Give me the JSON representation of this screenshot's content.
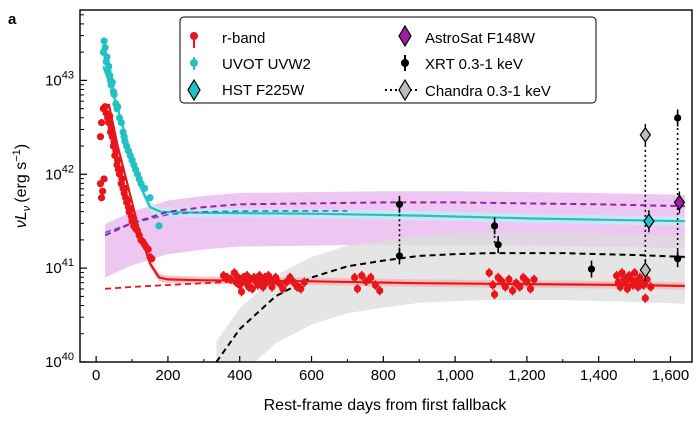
{
  "chart_data": {
    "type": "scatter",
    "panel_label": "a",
    "xlabel": "Rest-frame days from first fallback",
    "ylabel_main": "νL",
    "ylabel_sub": "ν",
    "ylabel_units": "(erg s",
    "ylabel_units_exp": "−1",
    "ylabel_close": ")",
    "xlim": [
      -45,
      1660
    ],
    "ylim_log10": [
      40,
      43.75
    ],
    "x_ticks": [
      {
        "value": 0,
        "label": "0"
      },
      {
        "value": 200,
        "label": "200"
      },
      {
        "value": 400,
        "label": "400"
      },
      {
        "value": 600,
        "label": "600"
      },
      {
        "value": 800,
        "label": "800"
      },
      {
        "value": 1000,
        "label": "1,000"
      },
      {
        "value": 1200,
        "label": "1,200"
      },
      {
        "value": 1400,
        "label": "1,400"
      },
      {
        "value": 1600,
        "label": "1,600"
      }
    ],
    "y_ticks": [
      {
        "log": 40,
        "base": "10",
        "exp": "40"
      },
      {
        "log": 41,
        "base": "10",
        "exp": "41"
      },
      {
        "log": 42,
        "base": "10",
        "exp": "42"
      },
      {
        "log": 43,
        "base": "10",
        "exp": "43"
      }
    ],
    "colors": {
      "r": "#e8151b",
      "uvot": "#22c1c3",
      "hst": "#22c1c3",
      "astrosat": "#9b1fa3",
      "astrosat_band": "#e7b3ee",
      "xrt": "#000000",
      "chandra": "#bdbdbd",
      "xray_band": "#dcdcdc"
    },
    "legend": [
      {
        "label": "r-band",
        "marker": "dot",
        "color": "#e8151b"
      },
      {
        "label": "UVOT UVW2",
        "marker": "dot",
        "color": "#22c1c3"
      },
      {
        "label": "HST F225W",
        "marker": "diamond",
        "color": "#22c1c3"
      },
      {
        "label": "AstroSat F148W",
        "marker": "diamond",
        "color": "#9b1fa3"
      },
      {
        "label": "XRT 0.3-1 keV",
        "marker": "dot",
        "color": "#000000"
      },
      {
        "label": "Chandra 0.3-1 keV",
        "marker": "diamond",
        "color": "#bdbdbd",
        "dotted": true
      }
    ],
    "series": [
      {
        "name": "r-band",
        "type": "points",
        "points": [
          [
            12,
            42.4
          ],
          [
            15,
            42.55
          ],
          [
            20,
            42.7
          ],
          [
            25,
            42.72
          ],
          [
            28,
            42.65
          ],
          [
            32,
            42.6
          ],
          [
            35,
            42.55
          ],
          [
            38,
            42.62
          ],
          [
            40,
            42.45
          ],
          [
            42,
            42.5
          ],
          [
            45,
            42.4
          ],
          [
            48,
            42.3
          ],
          [
            50,
            42.35
          ],
          [
            52,
            42.2
          ],
          [
            55,
            42.25
          ],
          [
            58,
            42.1
          ],
          [
            60,
            42.15
          ],
          [
            62,
            42.05
          ],
          [
            65,
            42.0
          ],
          [
            68,
            42.05
          ],
          [
            70,
            41.9
          ],
          [
            72,
            41.95
          ],
          [
            75,
            41.85
          ],
          [
            78,
            41.8
          ],
          [
            80,
            41.85
          ],
          [
            82,
            41.75
          ],
          [
            85,
            41.7
          ],
          [
            88,
            41.72
          ],
          [
            90,
            41.65
          ],
          [
            92,
            41.6
          ],
          [
            95,
            41.62
          ],
          [
            98,
            41.55
          ],
          [
            100,
            41.5
          ],
          [
            102,
            41.52
          ],
          [
            105,
            41.45
          ],
          [
            110,
            41.42
          ],
          [
            115,
            41.4
          ],
          [
            120,
            41.35
          ],
          [
            125,
            41.3
          ],
          [
            130,
            41.28
          ],
          [
            135,
            41.25
          ],
          [
            140,
            41.22
          ],
          [
            145,
            41.2
          ],
          [
            150,
            41.12
          ],
          [
            155,
            41.1
          ],
          [
            12,
            41.9
          ],
          [
            15,
            41.75
          ],
          [
            18,
            41.82
          ],
          [
            22,
            41.95
          ],
          [
            355,
            40.92
          ],
          [
            365,
            40.9
          ],
          [
            375,
            40.88
          ],
          [
            385,
            40.95
          ],
          [
            390,
            40.85
          ],
          [
            395,
            40.9
          ],
          [
            400,
            40.82
          ],
          [
            405,
            40.75
          ],
          [
            410,
            40.9
          ],
          [
            415,
            40.85
          ],
          [
            420,
            40.92
          ],
          [
            425,
            40.8
          ],
          [
            430,
            40.88
          ],
          [
            435,
            40.78
          ],
          [
            440,
            40.9
          ],
          [
            445,
            40.86
          ],
          [
            450,
            40.82
          ],
          [
            455,
            40.92
          ],
          [
            460,
            40.86
          ],
          [
            465,
            40.8
          ],
          [
            470,
            40.9
          ],
          [
            475,
            40.85
          ],
          [
            480,
            40.92
          ],
          [
            485,
            40.88
          ],
          [
            490,
            40.8
          ],
          [
            495,
            40.86
          ],
          [
            500,
            40.9
          ],
          [
            510,
            40.84
          ],
          [
            520,
            40.78
          ],
          [
            530,
            40.85
          ],
          [
            540,
            40.9
          ],
          [
            550,
            40.85
          ],
          [
            560,
            40.8
          ],
          [
            570,
            40.78
          ],
          [
            580,
            40.85
          ],
          [
            720,
            40.9
          ],
          [
            728,
            40.78
          ],
          [
            740,
            40.92
          ],
          [
            752,
            40.86
          ],
          [
            765,
            40.9
          ],
          [
            778,
            40.82
          ],
          [
            790,
            40.76
          ],
          [
            1095,
            40.95
          ],
          [
            1105,
            40.82
          ],
          [
            1110,
            40.72
          ],
          [
            1120,
            40.9
          ],
          [
            1130,
            40.86
          ],
          [
            1140,
            40.8
          ],
          [
            1150,
            40.88
          ],
          [
            1160,
            40.76
          ],
          [
            1170,
            40.84
          ],
          [
            1180,
            40.8
          ],
          [
            1190,
            40.9
          ],
          [
            1200,
            40.86
          ],
          [
            1210,
            40.78
          ],
          [
            1220,
            40.88
          ],
          [
            1450,
            40.92
          ],
          [
            1455,
            40.85
          ],
          [
            1460,
            40.8
          ],
          [
            1465,
            40.95
          ],
          [
            1470,
            40.9
          ],
          [
            1475,
            40.85
          ],
          [
            1480,
            40.78
          ],
          [
            1485,
            40.92
          ],
          [
            1490,
            40.88
          ],
          [
            1495,
            40.82
          ],
          [
            1500,
            40.95
          ],
          [
            1505,
            40.86
          ],
          [
            1510,
            40.8
          ],
          [
            1515,
            40.9
          ],
          [
            1520,
            40.85
          ],
          [
            1525,
            40.82
          ],
          [
            1530,
            40.68
          ],
          [
            1535,
            40.88
          ],
          [
            1545,
            40.8
          ]
        ]
      },
      {
        "name": "UVOT UVW2",
        "type": "points",
        "points": [
          [
            20,
            43.3
          ],
          [
            22,
            43.42
          ],
          [
            25,
            43.35
          ],
          [
            28,
            43.2
          ],
          [
            30,
            43.25
          ],
          [
            33,
            43.1
          ],
          [
            35,
            43.15
          ],
          [
            38,
            43.05
          ],
          [
            40,
            43.0
          ],
          [
            42,
            42.95
          ],
          [
            45,
            42.98
          ],
          [
            48,
            42.88
          ],
          [
            50,
            42.85
          ],
          [
            55,
            42.75
          ],
          [
            58,
            42.7
          ],
          [
            60,
            42.72
          ],
          [
            65,
            42.6
          ],
          [
            70,
            42.55
          ],
          [
            75,
            42.45
          ],
          [
            78,
            42.4
          ],
          [
            80,
            42.35
          ],
          [
            85,
            42.3
          ],
          [
            90,
            42.25
          ],
          [
            95,
            42.2
          ],
          [
            100,
            42.15
          ],
          [
            105,
            42.1
          ],
          [
            110,
            42.05
          ],
          [
            115,
            42.0
          ],
          [
            120,
            41.95
          ],
          [
            125,
            41.9
          ],
          [
            135,
            41.85
          ],
          [
            150,
            41.75
          ],
          [
            175,
            41.45
          ]
        ]
      },
      {
        "name": "HST F225W",
        "type": "diamond",
        "points": [
          [
            1540,
            41.5
          ]
        ]
      },
      {
        "name": "AstroSat F148W",
        "type": "diamond",
        "points": [
          [
            1625,
            41.7
          ]
        ]
      },
      {
        "name": "XRT 0.3-1 keV",
        "type": "points",
        "points": [
          [
            845,
            41.68
          ],
          [
            845,
            41.13
          ],
          [
            1110,
            41.45
          ],
          [
            1120,
            41.25
          ],
          [
            1380,
            40.99
          ],
          [
            1620,
            42.6
          ],
          [
            1620,
            41.1
          ]
        ]
      },
      {
        "name": "Chandra 0.3-1 keV",
        "type": "diamond",
        "points": [
          [
            1530,
            42.42
          ],
          [
            1530,
            40.98
          ]
        ]
      },
      {
        "name": "r-band model",
        "type": "line",
        "style": "solid",
        "points": [
          [
            35,
            42.75
          ],
          [
            60,
            42.3
          ],
          [
            90,
            41.85
          ],
          [
            120,
            41.4
          ],
          [
            150,
            41.05
          ],
          [
            175,
            40.9
          ],
          [
            200,
            40.88
          ],
          [
            300,
            40.87
          ],
          [
            600,
            40.86
          ],
          [
            900,
            40.84
          ],
          [
            1200,
            40.83
          ],
          [
            1500,
            40.82
          ],
          [
            1640,
            40.81
          ]
        ]
      },
      {
        "name": "r-band baseline",
        "type": "line",
        "style": "dashed",
        "points": [
          [
            25,
            40.78
          ],
          [
            100,
            40.8
          ],
          [
            200,
            40.82
          ],
          [
            300,
            40.84
          ],
          [
            400,
            40.86
          ]
        ]
      },
      {
        "name": "UVW2 model",
        "type": "line",
        "style": "solid",
        "points": [
          [
            20,
            43.15
          ],
          [
            40,
            42.95
          ],
          [
            60,
            42.7
          ],
          [
            90,
            42.3
          ],
          [
            120,
            41.9
          ],
          [
            150,
            41.65
          ],
          [
            180,
            41.6
          ],
          [
            300,
            41.59
          ],
          [
            600,
            41.58
          ],
          [
            900,
            41.56
          ],
          [
            1200,
            41.53
          ],
          [
            1500,
            41.51
          ],
          [
            1640,
            41.5
          ]
        ]
      },
      {
        "name": "UVW2 dashed model",
        "type": "line",
        "style": "dashed",
        "points": [
          [
            25,
            41.38
          ],
          [
            100,
            41.48
          ],
          [
            200,
            41.57
          ],
          [
            300,
            41.6
          ],
          [
            450,
            41.61
          ],
          [
            700,
            41.61
          ]
        ]
      },
      {
        "name": "AstroSat model",
        "type": "line",
        "style": "dashed",
        "points": [
          [
            25,
            41.35
          ],
          [
            100,
            41.48
          ],
          [
            200,
            41.6
          ],
          [
            300,
            41.65
          ],
          [
            400,
            41.68
          ],
          [
            600,
            41.69
          ],
          [
            800,
            41.7
          ],
          [
            1000,
            41.7
          ],
          [
            1200,
            41.69
          ],
          [
            1400,
            41.68
          ],
          [
            1640,
            41.66
          ]
        ]
      },
      {
        "name": "X-ray model",
        "type": "line",
        "style": "dashed",
        "points": [
          [
            335,
            40.0
          ],
          [
            400,
            40.35
          ],
          [
            500,
            40.7
          ],
          [
            600,
            40.9
          ],
          [
            700,
            41.02
          ],
          [
            800,
            41.08
          ],
          [
            900,
            41.13
          ],
          [
            1000,
            41.15
          ],
          [
            1100,
            41.16
          ],
          [
            1200,
            41.16
          ],
          [
            1300,
            41.16
          ],
          [
            1400,
            41.15
          ],
          [
            1500,
            41.14
          ],
          [
            1640,
            41.12
          ]
        ]
      }
    ]
  }
}
